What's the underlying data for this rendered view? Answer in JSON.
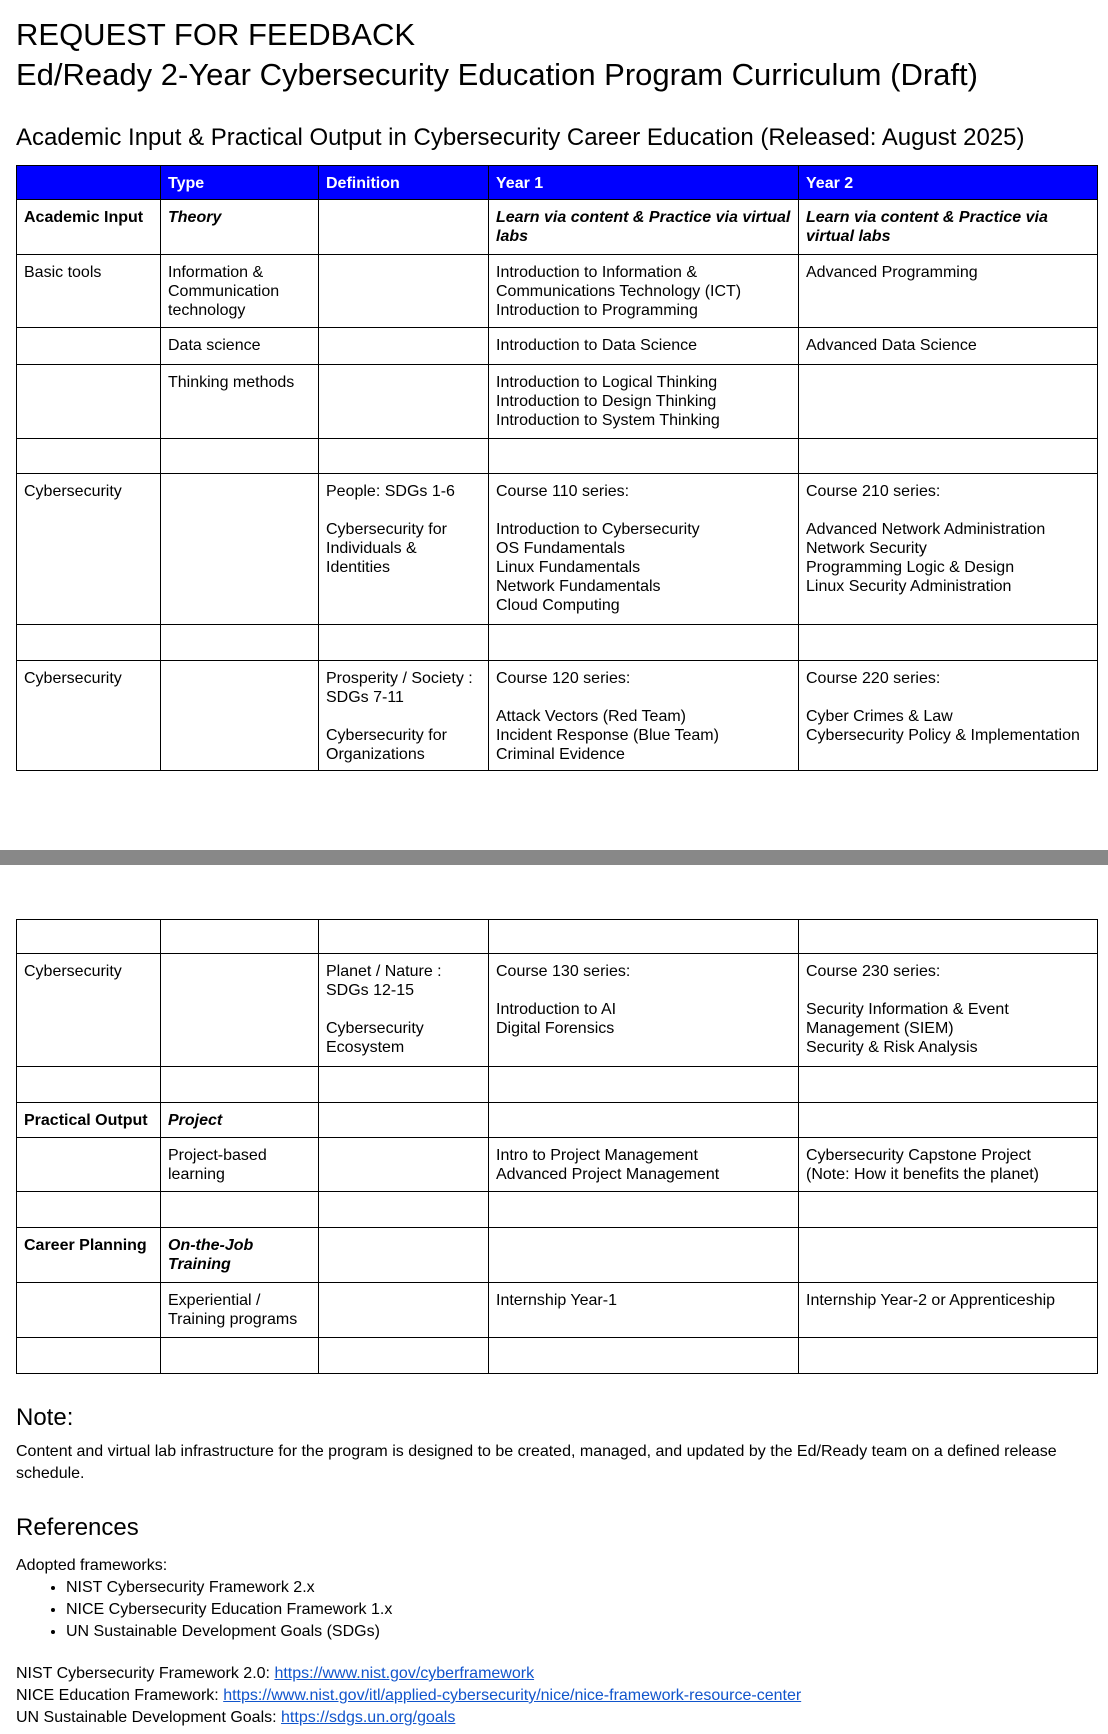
{
  "title_line1": "REQUEST FOR FEEDBACK",
  "title_line2": "Ed/Ready 2-Year Cybersecurity Education Program Curriculum (Draft)",
  "subtitle": "Academic Input & Practical Output in Cybersecurity Career Education (Released: August 2025)",
  "colors": {
    "header_bg": "#0000ff",
    "header_text": "#ffffff",
    "page_break_bar": "#888888",
    "link": "#1155cc"
  },
  "table": {
    "headers": [
      "",
      "Type",
      "Definition",
      "Year 1",
      "Year 2"
    ],
    "rows_page1": [
      {
        "style": "bold",
        "cells": [
          "Academic Input",
          "Theory",
          "",
          "Learn via content & Practice via virtual labs",
          "Learn via content & Practice via virtual labs"
        ]
      },
      {
        "cells": [
          "Basic tools",
          "Information & Communication technology",
          "",
          "Introduction to Information & Communications Technology (ICT)\nIntroduction to Programming",
          "Advanced Programming"
        ]
      },
      {
        "cells": [
          "",
          "Data science",
          "",
          "Introduction to Data Science",
          "Advanced Data Science"
        ]
      },
      {
        "cells": [
          "",
          "Thinking methods",
          "",
          "Introduction to Logical Thinking\nIntroduction to Design Thinking\nIntroduction to System Thinking",
          ""
        ]
      },
      {
        "cells": [
          "",
          "",
          "",
          "",
          ""
        ]
      },
      {
        "cells": [
          "Cybersecurity",
          "",
          "People: SDGs 1-6\n\nCybersecurity for Individuals & Identities",
          "Course 110 series:\n\nIntroduction to Cybersecurity\nOS Fundamentals\nLinux Fundamentals\nNetwork Fundamentals\nCloud Computing",
          "Course 210 series:\n\nAdvanced Network Administration\nNetwork Security\nProgramming Logic & Design\nLinux Security Administration"
        ]
      },
      {
        "cells": [
          "",
          "",
          "",
          "",
          ""
        ]
      },
      {
        "cells": [
          "Cybersecurity",
          "",
          "Prosperity / Society : SDGs 7-11\n\nCybersecurity for Organizations",
          "Course 120 series:\n\nAttack Vectors (Red Team)\nIncident Response (Blue Team)\nCriminal Evidence",
          "Course 220 series:\n\nCyber Crimes & Law\nCybersecurity Policy & Implementation"
        ]
      }
    ],
    "rows_page2": [
      {
        "cells": [
          "",
          "",
          "",
          "",
          ""
        ]
      },
      {
        "cells": [
          "Cybersecurity",
          "",
          "Planet / Nature : SDGs 12-15\n\nCybersecurity Ecosystem",
          "Course 130 series:\n\nIntroduction to AI\nDigital Forensics",
          "Course 230 series:\n\nSecurity Information & Event Management (SIEM)\nSecurity & Risk Analysis"
        ]
      },
      {
        "cells": [
          "",
          "",
          "",
          "",
          ""
        ]
      },
      {
        "style": "bold",
        "cells": [
          "Practical Output",
          "Project",
          "",
          "",
          ""
        ]
      },
      {
        "cells": [
          "",
          "Project-based learning",
          "",
          "Intro to Project Management\nAdvanced Project Management",
          "Cybersecurity Capstone Project\n(Note: How it benefits the planet)"
        ]
      },
      {
        "cells": [
          "",
          "",
          "",
          "",
          ""
        ]
      },
      {
        "style": "bold",
        "cells": [
          "Career Planning",
          "On-the-Job Training",
          "",
          "",
          ""
        ]
      },
      {
        "cells": [
          "",
          "Experiential / Training programs",
          "",
          "Internship Year-1",
          "Internship Year-2 or Apprenticeship"
        ]
      },
      {
        "cells": [
          "",
          "",
          "",
          "",
          ""
        ]
      }
    ]
  },
  "note": {
    "heading": "Note:",
    "text": "Content and virtual lab infrastructure for the program is designed to be created, managed, and updated by the Ed/Ready team on a defined release schedule."
  },
  "references": {
    "heading": "References",
    "intro": "Adopted frameworks:",
    "bullets": [
      "NIST Cybersecurity Framework 2.x",
      "NICE Cybersecurity Education Framework 1.x",
      "UN Sustainable Development Goals (SDGs)"
    ],
    "links": [
      {
        "label": "NIST Cybersecurity Framework 2.0: ",
        "url": "https://www.nist.gov/cyberframework"
      },
      {
        "label": "NICE Education Framework: ",
        "url": "https://www.nist.gov/itl/applied-cybersecurity/nice/nice-framework-resource-center"
      },
      {
        "label": "UN Sustainable Development Goals: ",
        "url": "https://sdgs.un.org/goals"
      }
    ]
  }
}
